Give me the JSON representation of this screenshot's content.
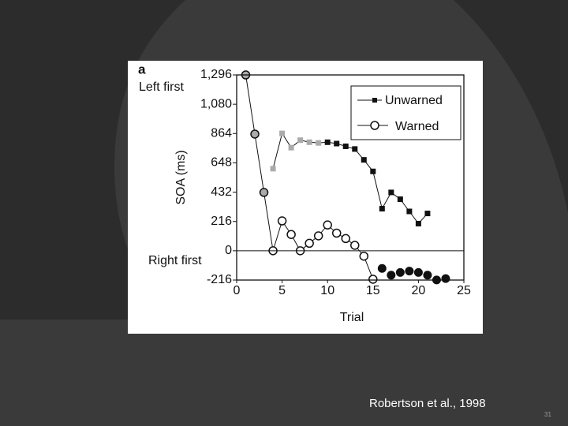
{
  "slide": {
    "citation": "Robertson et al., 1998",
    "slide_number": "31",
    "background_color": "#3a3a3a",
    "arc_color": "#2c2c2c"
  },
  "chart_data": {
    "type": "line",
    "panel_label": "a",
    "xlabel": "Trial",
    "ylabel": "SOA (ms)",
    "xlim": [
      0,
      25
    ],
    "ylim": [
      -216,
      1296
    ],
    "x_ticks": [
      0,
      5,
      10,
      15,
      20,
      25
    ],
    "x_tick_labels": [
      "0",
      "5",
      "10",
      "15",
      "20",
      "25"
    ],
    "y_ticks": [
      -216,
      0,
      216,
      432,
      648,
      864,
      1080,
      1296
    ],
    "y_tick_labels": [
      "-216",
      "0",
      "216",
      "432",
      "648",
      "864",
      "1,080",
      "1,296"
    ],
    "annotations": {
      "top": "Left first",
      "bottom": "Right first"
    },
    "reference_line_y": 0,
    "legend": {
      "position": "top-right",
      "entries": [
        "Unwarned",
        "Warned"
      ]
    },
    "grid": false,
    "series": [
      {
        "name": "Unwarned",
        "marker": "filled-square",
        "color": "#111111",
        "highlight_color": "#aaaaaa",
        "highlight_count": 6,
        "x": [
          4,
          5,
          6,
          7,
          8,
          9,
          10,
          11,
          12,
          13,
          14,
          15,
          16,
          17,
          18,
          19,
          20,
          21
        ],
        "y": [
          605,
          865,
          760,
          815,
          800,
          795,
          800,
          790,
          770,
          750,
          670,
          585,
          310,
          430,
          380,
          290,
          200,
          275
        ]
      },
      {
        "name": "Warned",
        "marker": "open-circle",
        "color": "#111111",
        "highlight_color": "#aaaaaa",
        "highlight_count": 3,
        "x": [
          1,
          2,
          3,
          4,
          5,
          6,
          7,
          8,
          9,
          10,
          11,
          12,
          13,
          14,
          15
        ],
        "y": [
          1296,
          860,
          430,
          0,
          220,
          120,
          0,
          55,
          110,
          190,
          130,
          90,
          40,
          -40,
          -210
        ]
      },
      {
        "name": "",
        "marker": "filled-circle",
        "color": "#111111",
        "x": [
          16,
          17,
          18,
          19,
          20,
          21,
          22,
          23
        ],
        "y": [
          -130,
          -180,
          -160,
          -150,
          -160,
          -180,
          -215,
          -205
        ]
      }
    ]
  }
}
